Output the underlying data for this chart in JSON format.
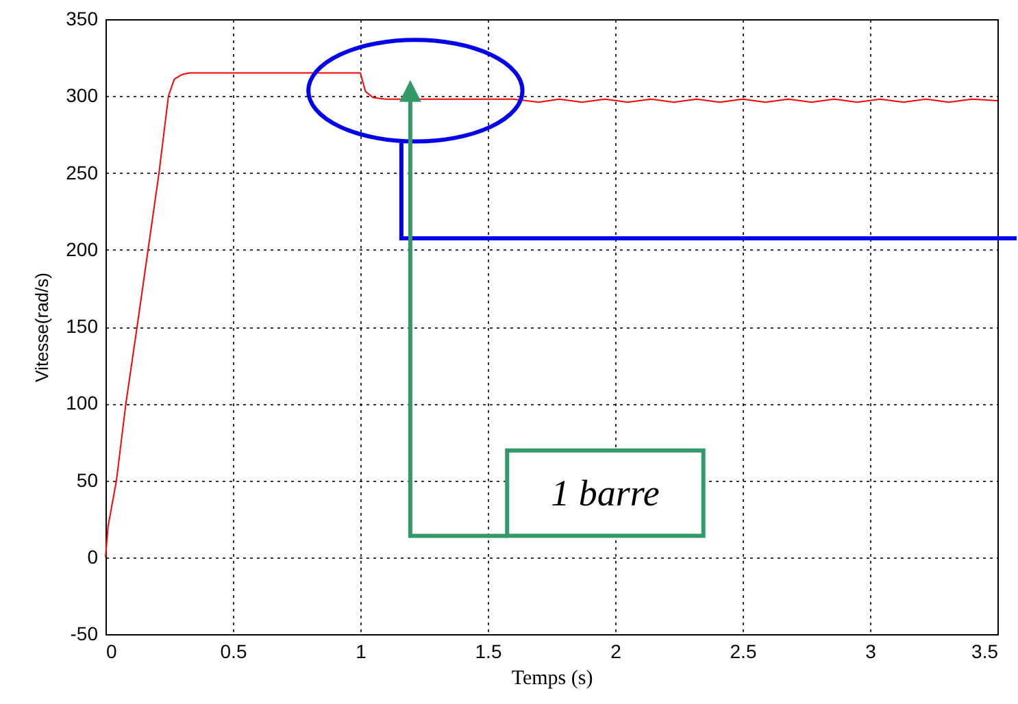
{
  "chart_data": {
    "type": "line",
    "xlabel": "Temps (s)",
    "ylabel": "Vitesse(rad/s)",
    "series": [
      {
        "color": "#ff0000",
        "x": [
          0,
          0.01,
          0.043,
          0.08,
          0.124,
          0.167,
          0.21,
          0.247,
          0.27,
          0.3,
          0.33,
          1.0,
          1.02,
          1.05,
          1.1,
          1.6,
          1.7,
          1.78,
          1.87,
          1.96,
          2.05,
          2.14,
          2.23,
          2.32,
          2.41,
          2.5,
          2.59,
          2.68,
          2.77,
          2.86,
          2.95,
          3.04,
          3.13,
          3.22,
          3.31,
          3.4,
          3.5
        ],
        "values": [
          0,
          20,
          50,
          100,
          150,
          200,
          250,
          300,
          311,
          314,
          315,
          315,
          303,
          299,
          298,
          298,
          296,
          298,
          296,
          298,
          296,
          298,
          296,
          298,
          296,
          298,
          296,
          298,
          296,
          298,
          296,
          298,
          296,
          298,
          296,
          298,
          297
        ]
      }
    ],
    "xlim": [
      0,
      3.5
    ],
    "ylim": [
      -50,
      350
    ],
    "xticks": [
      0,
      0.5,
      1,
      1.5,
      2,
      2.5,
      3,
      3.5
    ],
    "yticks": [
      -50,
      0,
      50,
      100,
      150,
      200,
      250,
      300,
      350
    ],
    "grid": true,
    "annotations": [
      "1 barre"
    ]
  }
}
